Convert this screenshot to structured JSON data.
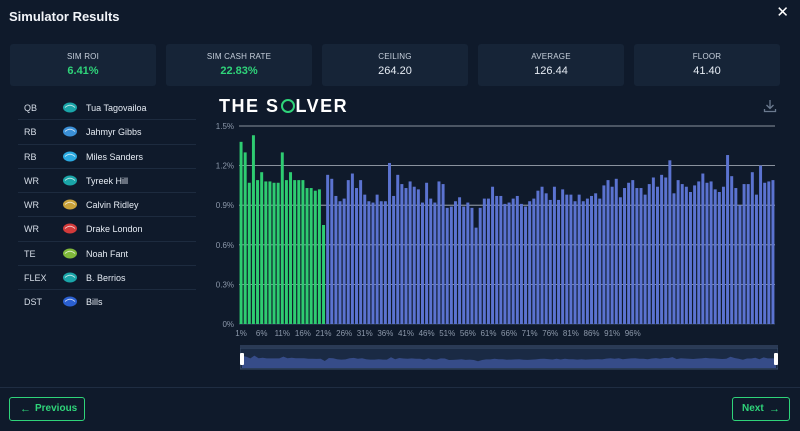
{
  "header": {
    "title": "Simulator Results",
    "close_label": "✕"
  },
  "stats": [
    {
      "label": "SIM ROI",
      "value": "6.41%",
      "highlight": true
    },
    {
      "label": "SIM CASH RATE",
      "value": "22.83%",
      "highlight": true
    },
    {
      "label": "CEILING",
      "value": "264.20",
      "highlight": false
    },
    {
      "label": "AVERAGE",
      "value": "126.44",
      "highlight": false
    },
    {
      "label": "FLOOR",
      "value": "41.40",
      "highlight": false
    }
  ],
  "roster": [
    {
      "pos": "QB",
      "name": "Tua Tagovailoa",
      "team_icon": "dolphins-logo-icon",
      "color": "#1aa5a8"
    },
    {
      "pos": "RB",
      "name": "Jahmyr Gibbs",
      "team_icon": "lions-logo-icon",
      "color": "#3a8fd6"
    },
    {
      "pos": "RB",
      "name": "Miles Sanders",
      "team_icon": "panthers-logo-icon",
      "color": "#2aa9e0"
    },
    {
      "pos": "WR",
      "name": "Tyreek Hill",
      "team_icon": "dolphins-logo-icon",
      "color": "#1aa5a8"
    },
    {
      "pos": "WR",
      "name": "Calvin Ridley",
      "team_icon": "jaguars-logo-icon",
      "color": "#c9a23a"
    },
    {
      "pos": "WR",
      "name": "Drake London",
      "team_icon": "falcons-logo-icon",
      "color": "#d23a3a"
    },
    {
      "pos": "TE",
      "name": "Noah Fant",
      "team_icon": "seahawks-logo-icon",
      "color": "#7fb83a"
    },
    {
      "pos": "FLEX",
      "name": "B. Berrios",
      "team_icon": "dolphins-logo-icon",
      "color": "#1aa5a8"
    },
    {
      "pos": "DST",
      "name": "Bills",
      "team_icon": "bills-logo-icon",
      "color": "#2a5fd0"
    }
  ],
  "brand": {
    "part1": "THE S",
    "part2": "LVER"
  },
  "buttons": {
    "previous": "Previous",
    "next": "Next"
  },
  "colors": {
    "accent": "#2fd47a",
    "bar_cash": "#2ecc71",
    "bar_other": "#5b73d0",
    "panel": "#162437",
    "background": "#0f1a2b"
  },
  "chart_data": {
    "type": "bar",
    "ylim": [
      0,
      1.5
    ],
    "yticks": [
      "0%",
      "0.3%",
      "0.6%",
      "0.9%",
      "1.2%",
      "1.5%"
    ],
    "xticks": [
      "1%",
      "6%",
      "11%",
      "16%",
      "21%",
      "26%",
      "31%",
      "36%",
      "41%",
      "46%",
      "51%",
      "56%",
      "61%",
      "66%",
      "71%",
      "76%",
      "81%",
      "86%",
      "91%",
      "96%"
    ],
    "categories_start": 1,
    "cash_threshold_count": 21,
    "values": [
      1.38,
      1.3,
      1.07,
      1.43,
      1.09,
      1.15,
      1.08,
      1.08,
      1.07,
      1.07,
      1.3,
      1.09,
      1.15,
      1.09,
      1.09,
      1.09,
      1.03,
      1.03,
      1.01,
      1.02,
      0.75,
      1.13,
      1.1,
      0.97,
      0.93,
      0.95,
      1.09,
      1.14,
      1.03,
      1.09,
      0.98,
      0.93,
      0.92,
      0.98,
      0.93,
      0.93,
      1.22,
      0.97,
      1.13,
      1.06,
      1.03,
      1.08,
      1.04,
      1.02,
      0.92,
      1.07,
      0.95,
      0.92,
      1.08,
      1.06,
      0.88,
      0.89,
      0.93,
      0.96,
      0.89,
      0.92,
      0.88,
      0.73,
      0.88,
      0.95,
      0.95,
      1.04,
      0.97,
      0.97,
      0.91,
      0.92,
      0.95,
      0.97,
      0.91,
      0.89,
      0.93,
      0.95,
      1.01,
      1.04,
      0.99,
      0.94,
      1.04,
      0.94,
      1.02,
      0.98,
      0.98,
      0.93,
      0.98,
      0.93,
      0.95,
      0.97,
      0.99,
      0.95,
      1.05,
      1.09,
      1.04,
      1.1,
      0.96,
      1.03,
      1.07,
      1.09,
      1.03,
      1.03,
      0.98,
      1.06,
      1.11,
      1.04,
      1.13,
      1.11,
      1.24,
      0.99,
      1.09,
      1.06,
      1.04,
      1.0,
      1.05,
      1.08,
      1.14,
      1.07,
      1.08,
      1.02,
      1.0,
      1.04,
      1.28,
      1.12,
      1.03,
      0.9,
      1.06,
      1.06,
      1.15,
      0.98,
      1.2,
      1.07,
      1.08,
      1.09
    ]
  }
}
